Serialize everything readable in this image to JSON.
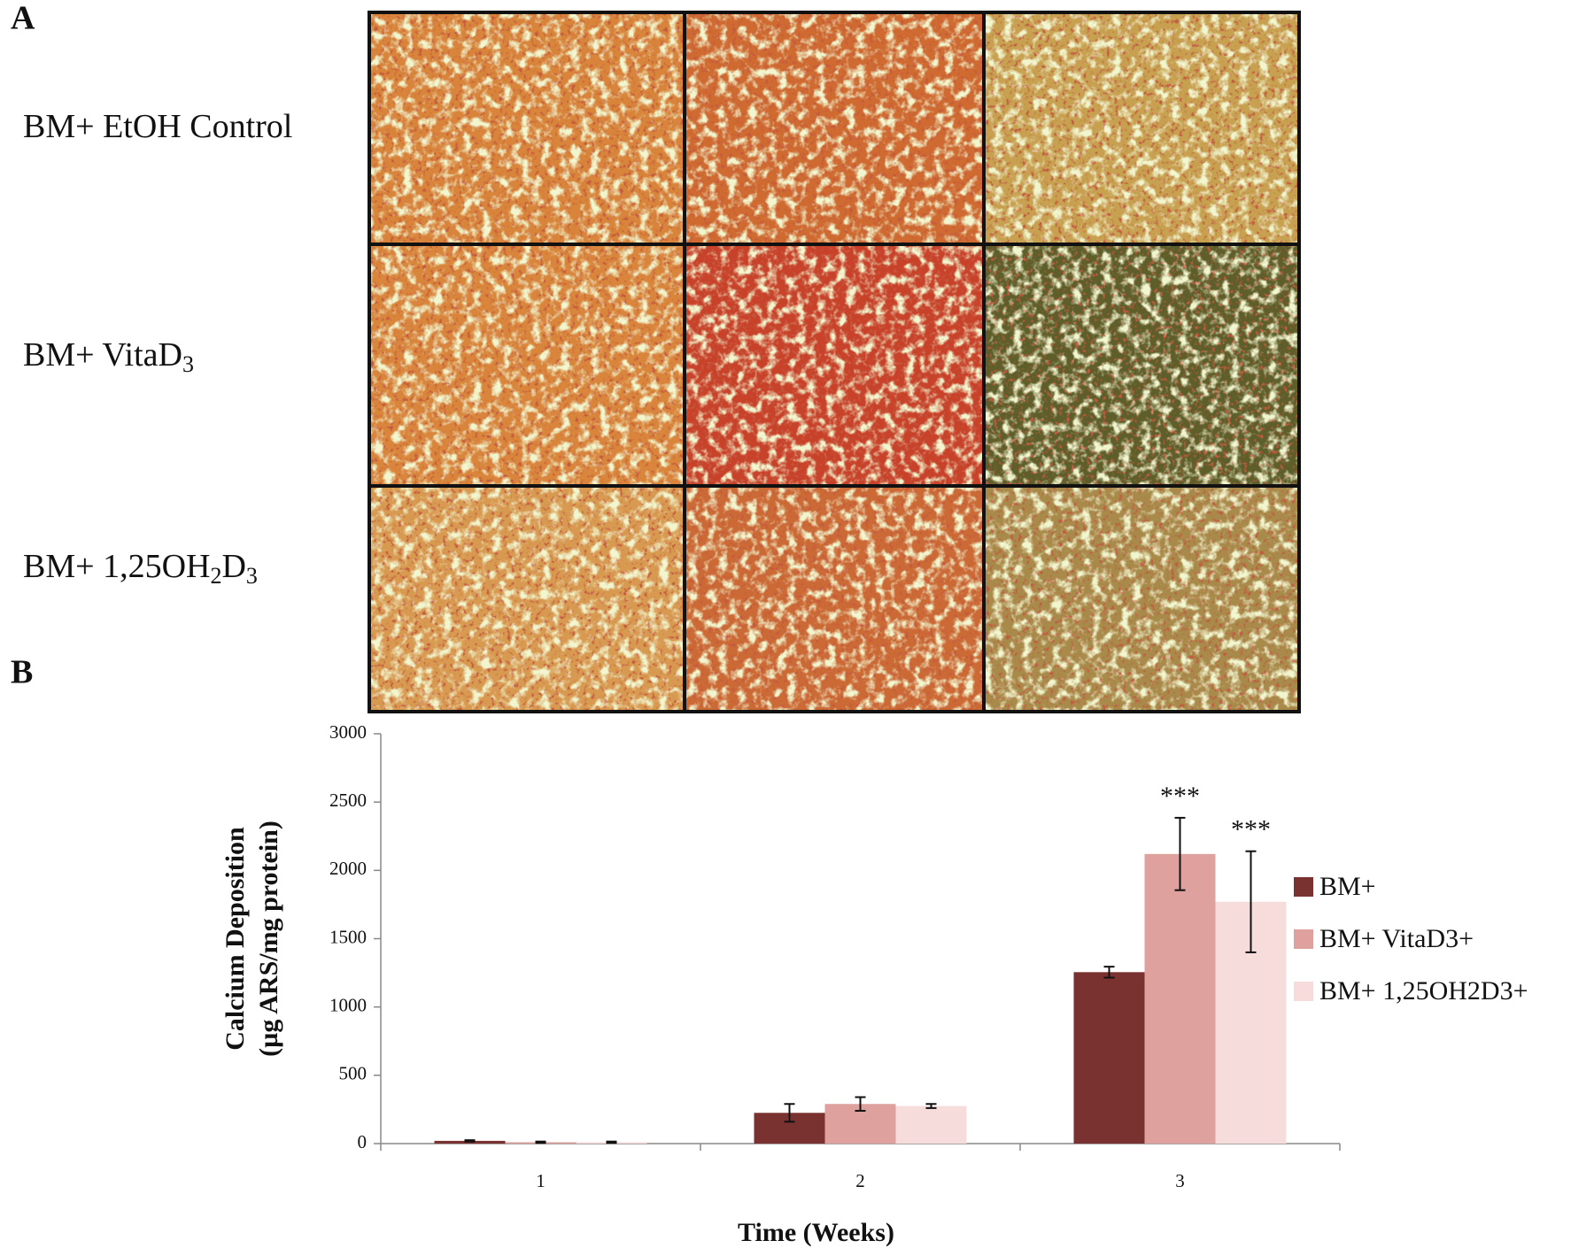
{
  "panel_a": {
    "label": "A",
    "row_labels": [
      [
        {
          "text": "BM+ EtOH Control"
        }
      ],
      [
        {
          "text": "BM+ VitaD"
        },
        {
          "sub": "3"
        }
      ],
      [
        {
          "text": "BM+ 1,25OH"
        },
        {
          "sub": "2"
        },
        {
          "text": "D"
        },
        {
          "sub": "3"
        }
      ]
    ]
  },
  "panel_b": {
    "label": "B"
  },
  "chart_data": {
    "type": "bar",
    "y_label": [
      "Calcium Deposition",
      "(µg ARS/mg protein)"
    ],
    "x_label": "Time (Weeks)",
    "categories": [
      "1",
      "2",
      "3"
    ],
    "series": [
      {
        "name": "BM+",
        "color": "#7a3230",
        "values": [
          20,
          225,
          1255
        ],
        "errors": [
          5,
          65,
          40
        ]
      },
      {
        "name": "BM+ VitaD3+",
        "color": "#dea19d",
        "values": [
          10,
          290,
          2120
        ],
        "errors": [
          5,
          50,
          265
        ]
      },
      {
        "name": "BM+ 1,25OH2D3+",
        "color": "#f6dcdb",
        "values": [
          10,
          275,
          1770
        ],
        "errors": [
          5,
          15,
          370
        ]
      }
    ],
    "annotations": [
      "***",
      "***"
    ],
    "ylim": [
      0,
      3000
    ],
    "yticks": [
      0,
      500,
      1000,
      1500,
      2000,
      2500,
      3000
    ],
    "legend": "right"
  }
}
